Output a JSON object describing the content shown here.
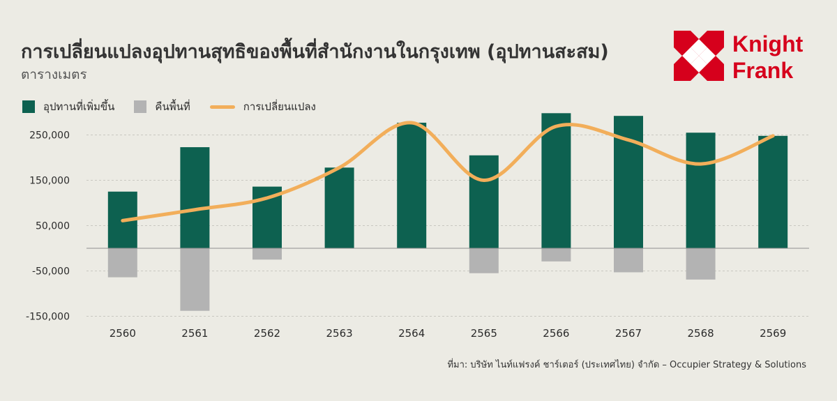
{
  "header": {
    "title": "การเปลี่ยนแปลงอุปทานสุทธิของพื้นที่สำนักงานในกรุงเทพ (อุปทานสะสม)",
    "subtitle": "ตารางเมตร"
  },
  "logo": {
    "line1": "Knight",
    "line2": "Frank",
    "color": "#d6001c"
  },
  "legend": {
    "items": [
      {
        "label": "อุปทานที่เพิ่มขึ้น",
        "color": "#0d6150",
        "kind": "bar"
      },
      {
        "label": "คืนพื้นที่",
        "color": "#b3b3b3",
        "kind": "bar"
      },
      {
        "label": "การเปลี่ยนแปลง",
        "color": "#f2ae5a",
        "kind": "line"
      }
    ]
  },
  "source": "ที่มา: บริษัท ไนท์แฟรงค์ ชาร์เตอร์ (ประเทศไทย) จำกัด – Occupier Strategy & Solutions",
  "chart_data": {
    "type": "bar",
    "categories": [
      "2560",
      "2561",
      "2562",
      "2563",
      "2564",
      "2565",
      "2566",
      "2567",
      "2568",
      "2569"
    ],
    "series": [
      {
        "name": "อุปทานที่เพิ่มขึ้น",
        "type": "bar",
        "color": "#0d6150",
        "values": [
          125000,
          223000,
          136000,
          178000,
          277000,
          205000,
          298000,
          292000,
          255000,
          248000
        ]
      },
      {
        "name": "คืนพื้นที่",
        "type": "bar",
        "color": "#b3b3b3",
        "values": [
          -64000,
          -138000,
          -25000,
          0,
          0,
          -55000,
          -29000,
          -53000,
          -69000,
          0
        ]
      },
      {
        "name": "การเปลี่ยนแปลง",
        "type": "line",
        "color": "#f2ae5a",
        "values": [
          61000,
          85000,
          111000,
          178000,
          277000,
          150000,
          269000,
          239000,
          186000,
          248000
        ]
      }
    ],
    "yticks": [
      250000,
      150000,
      50000,
      -50000,
      -150000
    ],
    "ytick_labels": [
      "250,000",
      "150,000",
      "50,000",
      "-50,000",
      "-150,000"
    ],
    "ylim": [
      -150000,
      300000
    ],
    "grid": true,
    "legend_position": "top-left"
  }
}
